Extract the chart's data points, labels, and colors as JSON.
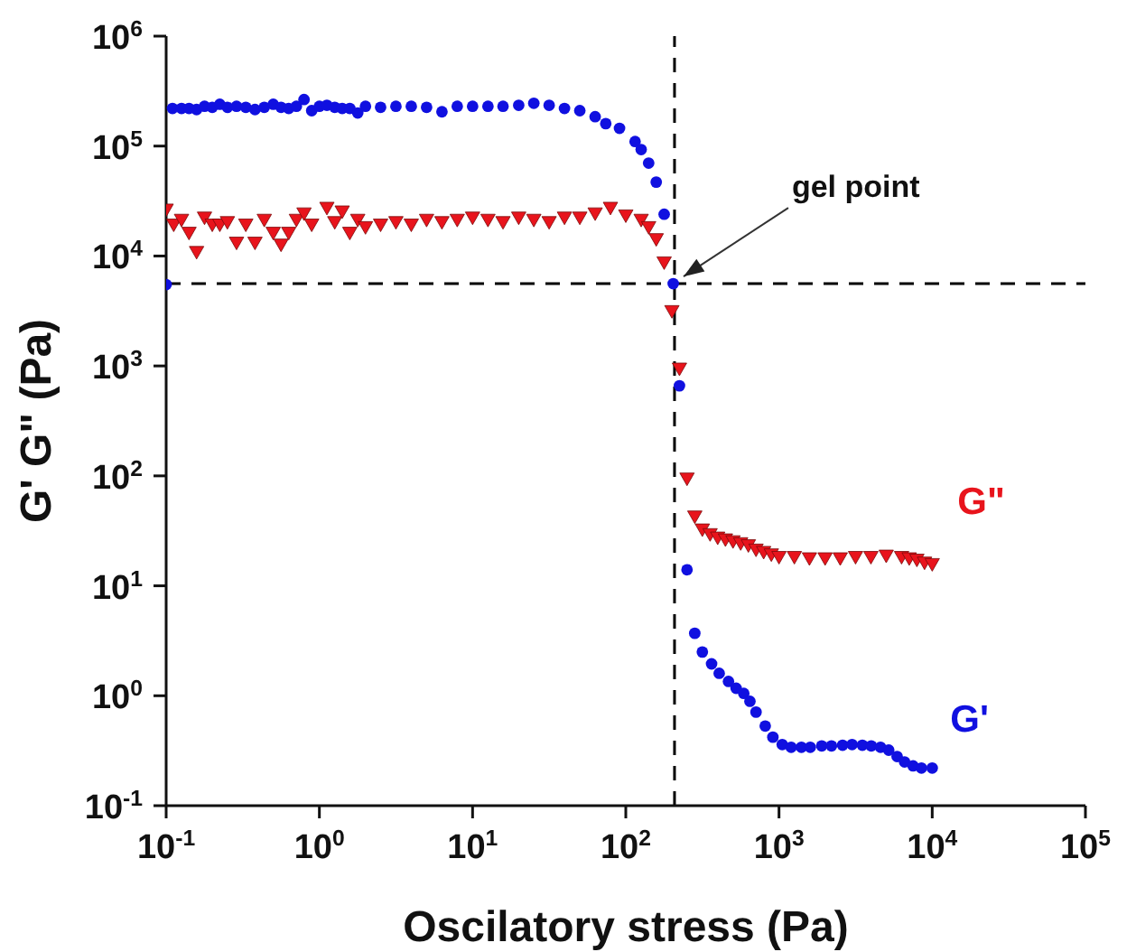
{
  "chart_data": {
    "type": "scatter",
    "xlabel": "Oscilatory stress (Pa)",
    "ylabel": "G' G\" (Pa)",
    "log": "xy",
    "xlim": [
      0.1,
      100000
    ],
    "ylim": [
      0.1,
      1000000
    ],
    "xticks": [
      {
        "value": 0.1,
        "label": "10$^{-1}$"
      },
      {
        "value": 1,
        "label": "10$^{0}$"
      },
      {
        "value": 10,
        "label": "10$^{1}$"
      },
      {
        "value": 100,
        "label": "10$^{2}$"
      },
      {
        "value": 1000,
        "label": "10$^{3}$"
      },
      {
        "value": 10000,
        "label": "10$^{4}$"
      },
      {
        "value": 100000,
        "label": "10$^{5}$"
      }
    ],
    "yticks": [
      {
        "value": 0.1,
        "label": "10$^{-1}$"
      },
      {
        "value": 1,
        "label": "10$^{0}$"
      },
      {
        "value": 10,
        "label": "10$^{1}$"
      },
      {
        "value": 100,
        "label": "10$^{2}$"
      },
      {
        "value": 1000,
        "label": "10$^{3}$"
      },
      {
        "value": 10000,
        "label": "10$^{4}$"
      },
      {
        "value": 100000,
        "label": "10$^{5}$"
      },
      {
        "value": 1000000,
        "label": "10$^{6}$"
      }
    ],
    "series": [
      {
        "name": "G\"",
        "color": "#e8141c",
        "marker": "triangle",
        "x": [
          0.1,
          0.112,
          0.126,
          0.141,
          0.158,
          0.178,
          0.2,
          0.224,
          0.251,
          0.288,
          0.331,
          0.38,
          0.437,
          0.5,
          0.562,
          0.631,
          0.708,
          0.794,
          0.891,
          1.12,
          1.26,
          1.41,
          1.58,
          1.78,
          2,
          2.51,
          3.16,
          3.98,
          5.01,
          6.31,
          7.94,
          10,
          12.6,
          15.8,
          20,
          25.1,
          31.6,
          39.8,
          50.1,
          63.1,
          79.4,
          100,
          126,
          141,
          158,
          178,
          200,
          224,
          251,
          282,
          316,
          355,
          398,
          447,
          501,
          562,
          631,
          708,
          794,
          891,
          1000,
          1260,
          1580,
          2000,
          2510,
          3160,
          3980,
          5010,
          6310,
          7080,
          7940,
          8910,
          10000
        ],
        "values": [
          26000,
          19000,
          21000,
          16000,
          10700,
          22000,
          19000,
          19000,
          20000,
          13000,
          19000,
          13000,
          21000,
          16000,
          12500,
          16000,
          21000,
          24000,
          19000,
          27000,
          20000,
          25000,
          16000,
          21000,
          18000,
          19000,
          20000,
          19000,
          21000,
          20000,
          21000,
          22000,
          21000,
          20000,
          22000,
          21000,
          20000,
          22000,
          22000,
          24000,
          27000,
          23000,
          21000,
          18000,
          14000,
          8600,
          3100,
          930,
          93,
          42,
          32,
          29,
          27,
          26,
          25,
          24,
          23,
          21,
          20,
          19,
          18,
          18,
          17.5,
          17.5,
          17.5,
          18,
          18,
          18.5,
          18,
          17.5,
          17,
          16,
          15.5
        ]
      },
      {
        "name": "G'",
        "color": "#1010e0",
        "marker": "circle",
        "x": [
          0.1,
          0.11,
          0.126,
          0.141,
          0.158,
          0.178,
          0.2,
          0.224,
          0.251,
          0.288,
          0.331,
          0.38,
          0.437,
          0.5,
          0.562,
          0.631,
          0.708,
          0.794,
          0.891,
          1,
          1.12,
          1.26,
          1.41,
          1.58,
          1.78,
          2,
          2.51,
          3.16,
          3.98,
          5.01,
          6.31,
          7.94,
          10,
          12.6,
          15.8,
          20,
          25.1,
          31.6,
          39.8,
          50.1,
          63.1,
          74,
          91,
          115,
          126,
          141,
          158,
          178,
          204,
          224,
          251,
          282,
          316,
          363,
          407,
          468,
          525,
          589,
          646,
          708,
          813,
          912,
          1050,
          1200,
          1400,
          1600,
          1900,
          2200,
          2600,
          3000,
          3500,
          4000,
          4600,
          5200,
          5900,
          6600,
          7500,
          8500,
          10000
        ],
        "values": [
          5500,
          220000,
          220000,
          220000,
          215000,
          230000,
          225000,
          240000,
          225000,
          230000,
          225000,
          215000,
          225000,
          240000,
          225000,
          220000,
          230000,
          265000,
          210000,
          230000,
          235000,
          225000,
          220000,
          220000,
          200000,
          230000,
          225000,
          230000,
          230000,
          225000,
          205000,
          230000,
          230000,
          230000,
          230000,
          235000,
          245000,
          235000,
          220000,
          210000,
          185000,
          160000,
          145000,
          110000,
          93000,
          70000,
          47000,
          24000,
          5600,
          660,
          14,
          3.7,
          2.5,
          1.95,
          1.6,
          1.35,
          1.17,
          1.05,
          0.89,
          0.71,
          0.53,
          0.42,
          0.36,
          0.34,
          0.34,
          0.34,
          0.35,
          0.35,
          0.355,
          0.36,
          0.355,
          0.35,
          0.34,
          0.32,
          0.28,
          0.25,
          0.23,
          0.22,
          0.22
        ]
      }
    ],
    "ref_lines": [
      {
        "axis": "x",
        "value": 208,
        "line_style": "dashed",
        "color": "#000000"
      },
      {
        "axis": "y",
        "value": 5600,
        "line_style": "dashed",
        "color": "#000000"
      }
    ],
    "annotations": [
      {
        "text": "gel point",
        "x": 208,
        "y": 5600
      }
    ]
  }
}
